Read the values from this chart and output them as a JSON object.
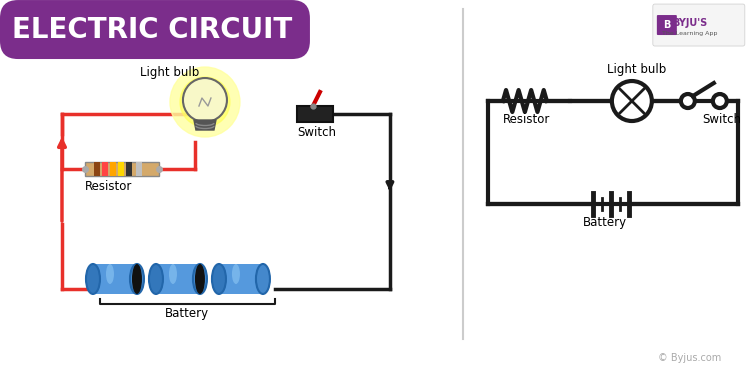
{
  "title": "ELECTRIC CIRCUIT",
  "title_bg_color": "#7B2D8B",
  "title_text_color": "#FFFFFF",
  "bg_color": "#FFFFFF",
  "line_color": "#1a1a1a",
  "red_wire_color": "#E8302A",
  "blue_battery_color": "#4A90D9",
  "labels": {
    "light_bulb_left": "Light bulb",
    "resistor_left": "Resistor",
    "switch_left": "Switch",
    "battery_left": "Battery",
    "light_bulb_right": "Light bulb",
    "resistor_right": "Resistor",
    "switch_right": "Switch",
    "battery_right": "Battery",
    "copyright": "© Byjus.com"
  }
}
